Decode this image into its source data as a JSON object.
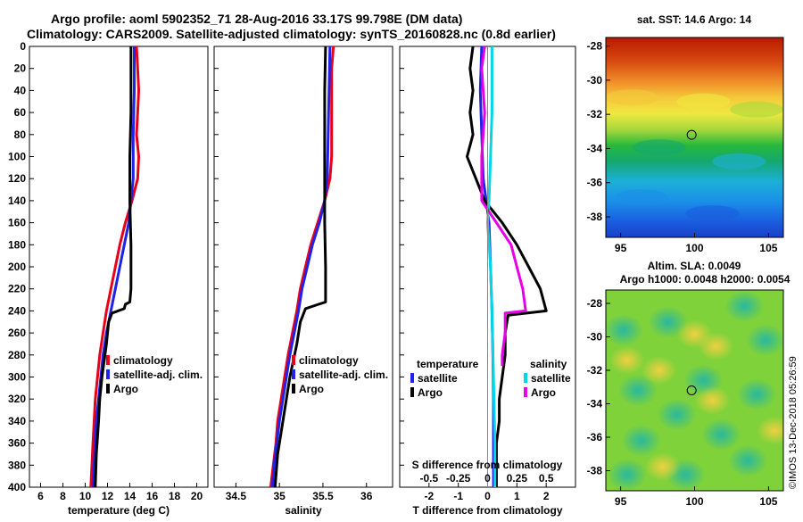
{
  "title_line1": "Argo profile: aoml 5902352_71 28-Aug-2016 33.17S 99.798E (DM data)",
  "title_line2": "Climatology: CARS2009. Satellite-adjusted climatology: synTS_20160828.nc (0.8d earlier)",
  "colors": {
    "red": "#e8001a",
    "blue": "#1f22e8",
    "black": "#000000",
    "cyan": "#00d7e6",
    "magenta": "#e600e6"
  },
  "depth_ticks": [
    0,
    20,
    40,
    60,
    80,
    100,
    120,
    140,
    160,
    180,
    200,
    220,
    240,
    260,
    280,
    300,
    320,
    340,
    360,
    380,
    400
  ],
  "chart_data": [
    {
      "type": "line",
      "xlabel": "temperature (deg C)",
      "xlim": [
        5,
        21
      ],
      "ylim": [
        0,
        400
      ],
      "xticks": [
        6,
        8,
        10,
        12,
        14,
        16,
        18,
        20
      ],
      "legend": [
        "climatology",
        "satellite-adj. clim.",
        "Argo"
      ],
      "series": [
        {
          "name": "climatology",
          "color": "red",
          "points": [
            [
              14.6,
              0
            ],
            [
              14.7,
              20
            ],
            [
              14.8,
              40
            ],
            [
              14.7,
              60
            ],
            [
              14.6,
              80
            ],
            [
              14.8,
              100
            ],
            [
              14.7,
              120
            ],
            [
              14.2,
              140
            ],
            [
              13.6,
              160
            ],
            [
              13.1,
              180
            ],
            [
              12.7,
              200
            ],
            [
              12.3,
              220
            ],
            [
              11.9,
              240
            ],
            [
              11.6,
              260
            ],
            [
              11.3,
              280
            ],
            [
              11.1,
              300
            ],
            [
              10.9,
              320
            ],
            [
              10.8,
              340
            ],
            [
              10.7,
              360
            ],
            [
              10.6,
              380
            ],
            [
              10.5,
              400
            ]
          ]
        },
        {
          "name": "satellite-adj. clim.",
          "color": "blue",
          "points": [
            [
              14.4,
              0
            ],
            [
              14.4,
              40
            ],
            [
              14.3,
              80
            ],
            [
              14.3,
              120
            ],
            [
              14.1,
              140
            ],
            [
              13.9,
              160
            ],
            [
              13.5,
              180
            ],
            [
              13.1,
              200
            ],
            [
              12.7,
              220
            ],
            [
              12.3,
              240
            ],
            [
              11.9,
              260
            ],
            [
              11.6,
              280
            ],
            [
              11.4,
              300
            ],
            [
              11.2,
              320
            ],
            [
              11.0,
              340
            ],
            [
              10.9,
              360
            ],
            [
              10.8,
              380
            ],
            [
              10.7,
              400
            ]
          ]
        },
        {
          "name": "Argo",
          "color": "black",
          "points": [
            [
              14.1,
              0
            ],
            [
              14.1,
              60
            ],
            [
              14.0,
              100
            ],
            [
              14.0,
              140
            ],
            [
              14.1,
              180
            ],
            [
              14.1,
              220
            ],
            [
              14.0,
              232
            ],
            [
              13.6,
              234
            ],
            [
              13.5,
              238
            ],
            [
              12.4,
              242
            ],
            [
              12.1,
              250
            ],
            [
              11.9,
              270
            ],
            [
              11.5,
              300
            ],
            [
              11.3,
              320
            ],
            [
              11.2,
              340
            ],
            [
              11.0,
              370
            ],
            [
              10.9,
              400
            ]
          ]
        }
      ]
    },
    {
      "type": "line",
      "xlabel": "salinity",
      "xlim": [
        34.25,
        36.3
      ],
      "ylim": [
        0,
        400
      ],
      "xticks": [
        34.5,
        35,
        35.5,
        36
      ],
      "legend": [
        "climatology",
        "satellite-adj. clim.",
        "Argo"
      ],
      "series": [
        {
          "name": "climatology",
          "color": "red",
          "points": [
            [
              35.62,
              0
            ],
            [
              35.6,
              20
            ],
            [
              35.6,
              40
            ],
            [
              35.6,
              60
            ],
            [
              35.6,
              80
            ],
            [
              35.6,
              100
            ],
            [
              35.58,
              120
            ],
            [
              35.52,
              140
            ],
            [
              35.44,
              160
            ],
            [
              35.36,
              180
            ],
            [
              35.3,
              200
            ],
            [
              35.24,
              220
            ],
            [
              35.2,
              240
            ],
            [
              35.15,
              260
            ],
            [
              35.1,
              280
            ],
            [
              35.06,
              300
            ],
            [
              35.02,
              320
            ],
            [
              34.98,
              340
            ],
            [
              34.96,
              360
            ],
            [
              34.93,
              380
            ],
            [
              34.9,
              400
            ]
          ]
        },
        {
          "name": "satellite-adj. clim.",
          "color": "blue",
          "points": [
            [
              35.58,
              0
            ],
            [
              35.57,
              40
            ],
            [
              35.56,
              80
            ],
            [
              35.55,
              120
            ],
            [
              35.52,
              140
            ],
            [
              35.46,
              160
            ],
            [
              35.38,
              180
            ],
            [
              35.32,
              200
            ],
            [
              35.26,
              220
            ],
            [
              35.22,
              240
            ],
            [
              35.17,
              260
            ],
            [
              35.12,
              280
            ],
            [
              35.08,
              300
            ],
            [
              35.04,
              320
            ],
            [
              35.0,
              340
            ],
            [
              34.97,
              360
            ],
            [
              34.94,
              380
            ],
            [
              34.92,
              400
            ]
          ]
        },
        {
          "name": "Argo",
          "color": "black",
          "points": [
            [
              35.53,
              0
            ],
            [
              35.52,
              40
            ],
            [
              35.52,
              100
            ],
            [
              35.52,
              160
            ],
            [
              35.53,
              200
            ],
            [
              35.53,
              232
            ],
            [
              35.45,
              234
            ],
            [
              35.3,
              238
            ],
            [
              35.24,
              250
            ],
            [
              35.2,
              270
            ],
            [
              35.12,
              300
            ],
            [
              35.08,
              320
            ],
            [
              35.04,
              340
            ],
            [
              34.98,
              370
            ],
            [
              34.95,
              400
            ]
          ]
        }
      ]
    },
    {
      "type": "line",
      "xlabel": "T difference from climatology",
      "xlabel_top": "S difference from climatology",
      "xlim": [
        -3,
        3
      ],
      "ylim": [
        0,
        400
      ],
      "xticks": [
        -2,
        -1,
        0,
        1,
        2
      ],
      "xticks_top": [
        "-0.5",
        "-0.25",
        "0",
        "0.25",
        "0.5"
      ],
      "xticks_top_values": [
        -2,
        -1,
        0,
        1,
        2
      ],
      "legend_temperature": {
        "title": "temperature",
        "items": [
          "satellite",
          "Argo"
        ]
      },
      "legend_salinity": {
        "title": "salinity",
        "items": [
          "satellite",
          "Argo"
        ]
      },
      "series": [
        {
          "name": "T satellite",
          "color": "blue",
          "points": [
            [
              -0.2,
              0
            ],
            [
              -0.25,
              40
            ],
            [
              -0.2,
              80
            ],
            [
              -0.15,
              120
            ],
            [
              -0.05,
              140
            ],
            [
              0.05,
              160
            ],
            [
              0.1,
              200
            ],
            [
              0.15,
              240
            ],
            [
              0.18,
              280
            ],
            [
              0.2,
              320
            ],
            [
              0.2,
              360
            ],
            [
              0.2,
              400
            ]
          ]
        },
        {
          "name": "T Argo",
          "color": "black",
          "points": [
            [
              -0.5,
              0
            ],
            [
              -0.6,
              20
            ],
            [
              -0.5,
              40
            ],
            [
              -0.6,
              60
            ],
            [
              -0.5,
              80
            ],
            [
              -0.7,
              100
            ],
            [
              -0.4,
              120
            ],
            [
              -0.1,
              140
            ],
            [
              0.5,
              160
            ],
            [
              1.0,
              180
            ],
            [
              1.4,
              200
            ],
            [
              1.8,
              220
            ],
            [
              2.0,
              240
            ],
            [
              0.7,
              244
            ],
            [
              0.6,
              260
            ],
            [
              0.6,
              280
            ],
            [
              0.5,
              300
            ],
            [
              0.4,
              320
            ],
            [
              0.4,
              340
            ],
            [
              0.3,
              360
            ],
            [
              0.3,
              380
            ],
            [
              0.3,
              400
            ]
          ]
        },
        {
          "name": "S satellite",
          "color": "cyan",
          "points": [
            [
              0.15,
              0
            ],
            [
              0.15,
              60
            ],
            [
              0.1,
              100
            ],
            [
              0.05,
              140
            ],
            [
              0.0,
              160
            ],
            [
              0.1,
              200
            ],
            [
              0.15,
              240
            ],
            [
              0.2,
              300
            ],
            [
              0.25,
              360
            ],
            [
              0.25,
              400
            ]
          ]
        },
        {
          "name": "S Argo",
          "color": "magenta",
          "points": [
            [
              -0.1,
              0
            ],
            [
              -0.2,
              20
            ],
            [
              -0.1,
              60
            ],
            [
              -0.2,
              100
            ],
            [
              -0.2,
              140
            ],
            [
              0.3,
              160
            ],
            [
              0.8,
              180
            ],
            [
              1.0,
              200
            ],
            [
              1.2,
              220
            ],
            [
              1.3,
              240
            ],
            [
              0.6,
              242
            ],
            [
              0.6,
              260
            ],
            [
              0.5,
              280
            ],
            [
              0.5,
              290
            ]
          ]
        }
      ]
    },
    {
      "type": "heatmap",
      "title": "sat. SST: 14.6 Argo: 14",
      "xlim": [
        94,
        106
      ],
      "ylim": [
        -39.2,
        -27.5
      ],
      "xticks": [
        95,
        100,
        105
      ],
      "yticks": [
        -28,
        -30,
        -32,
        -34,
        -36,
        -38
      ],
      "marker": [
        99.8,
        -33.2
      ]
    },
    {
      "type": "heatmap",
      "title_line1": "Altim. SLA: 0.0049",
      "title_line2": "Argo h1000: 0.0048 h2000: 0.0054",
      "xlim": [
        94,
        106
      ],
      "ylim": [
        -39.2,
        -27.2
      ],
      "xticks": [
        95,
        100,
        105
      ],
      "yticks": [
        -28,
        -30,
        -32,
        -34,
        -36,
        -38
      ],
      "marker": [
        99.8,
        -33.2
      ]
    }
  ],
  "watermark": "©IMOS 13-Dec-2018 05:26:59"
}
